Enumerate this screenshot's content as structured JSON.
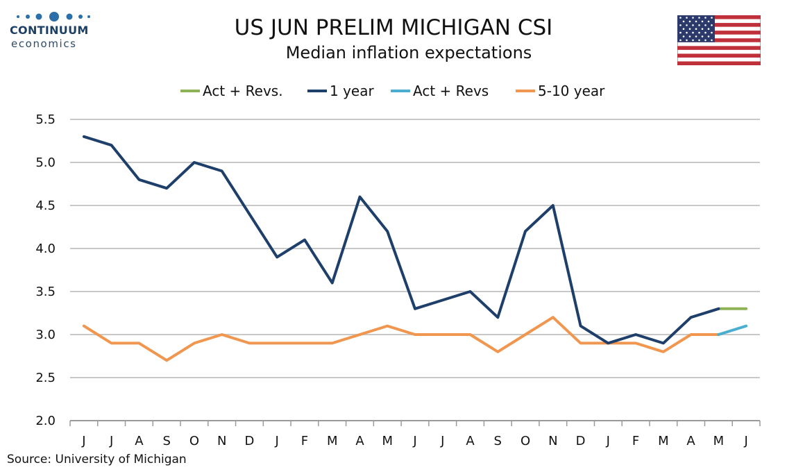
{
  "header": {
    "logo_brand": "CONTINUUM",
    "logo_sub": "economics",
    "title": "US JUN PRELIM MICHIGAN CSI",
    "subtitle": "Median inflation expectations"
  },
  "source": "Source: University of Michigan",
  "flag": {
    "icon": "us-flag-icon",
    "stripe_red": "#c0303a",
    "canton_blue": "#2b3a6b"
  },
  "colors": {
    "act_revs_green": "#8db356",
    "one_year": "#1f3f6b",
    "act_revs_blue": "#4aaed0",
    "five_ten_year": "#f0964f",
    "grid": "#c8c8c8"
  },
  "chart_data": {
    "type": "line",
    "title": "US JUN PRELIM MICHIGAN CSI",
    "subtitle": "Median inflation expectations",
    "categories": [
      "J",
      "J",
      "A",
      "S",
      "O",
      "N",
      "D",
      "J",
      "F",
      "M",
      "A",
      "M",
      "J",
      "J",
      "A",
      "S",
      "O",
      "N",
      "D",
      "J",
      "F",
      "M",
      "A",
      "M",
      "J"
    ],
    "ylim": [
      2.0,
      5.5
    ],
    "yticks": [
      "2.0",
      "2.5",
      "3.0",
      "3.5",
      "4.0",
      "4.5",
      "5.0",
      "5.5"
    ],
    "grid": true,
    "legend_position": "top",
    "series": [
      {
        "name": "Act + Revs.",
        "color": "#8db356",
        "values": [
          null,
          null,
          null,
          null,
          null,
          null,
          null,
          null,
          null,
          null,
          null,
          null,
          null,
          null,
          null,
          null,
          null,
          null,
          null,
          null,
          null,
          null,
          null,
          3.3,
          3.3
        ]
      },
      {
        "name": "1 year",
        "color": "#1f3f6b",
        "values": [
          5.3,
          5.2,
          4.8,
          4.7,
          5.0,
          4.9,
          4.4,
          3.9,
          4.1,
          3.6,
          4.6,
          4.2,
          3.3,
          3.4,
          3.5,
          3.2,
          4.2,
          4.5,
          3.1,
          2.9,
          3.0,
          2.9,
          3.2,
          3.3,
          null
        ]
      },
      {
        "name": "Act + Revs",
        "color": "#4aaed0",
        "values": [
          null,
          null,
          null,
          null,
          null,
          null,
          null,
          null,
          null,
          null,
          null,
          null,
          null,
          null,
          null,
          null,
          null,
          null,
          null,
          null,
          null,
          null,
          null,
          3.0,
          3.1
        ]
      },
      {
        "name": "5-10 year",
        "color": "#f0964f",
        "values": [
          3.1,
          2.9,
          2.9,
          2.7,
          2.9,
          3.0,
          2.9,
          2.9,
          2.9,
          2.9,
          3.0,
          3.1,
          3.0,
          3.0,
          3.0,
          2.8,
          3.0,
          3.2,
          2.9,
          2.9,
          2.9,
          2.8,
          3.0,
          3.0,
          null
        ]
      }
    ]
  }
}
